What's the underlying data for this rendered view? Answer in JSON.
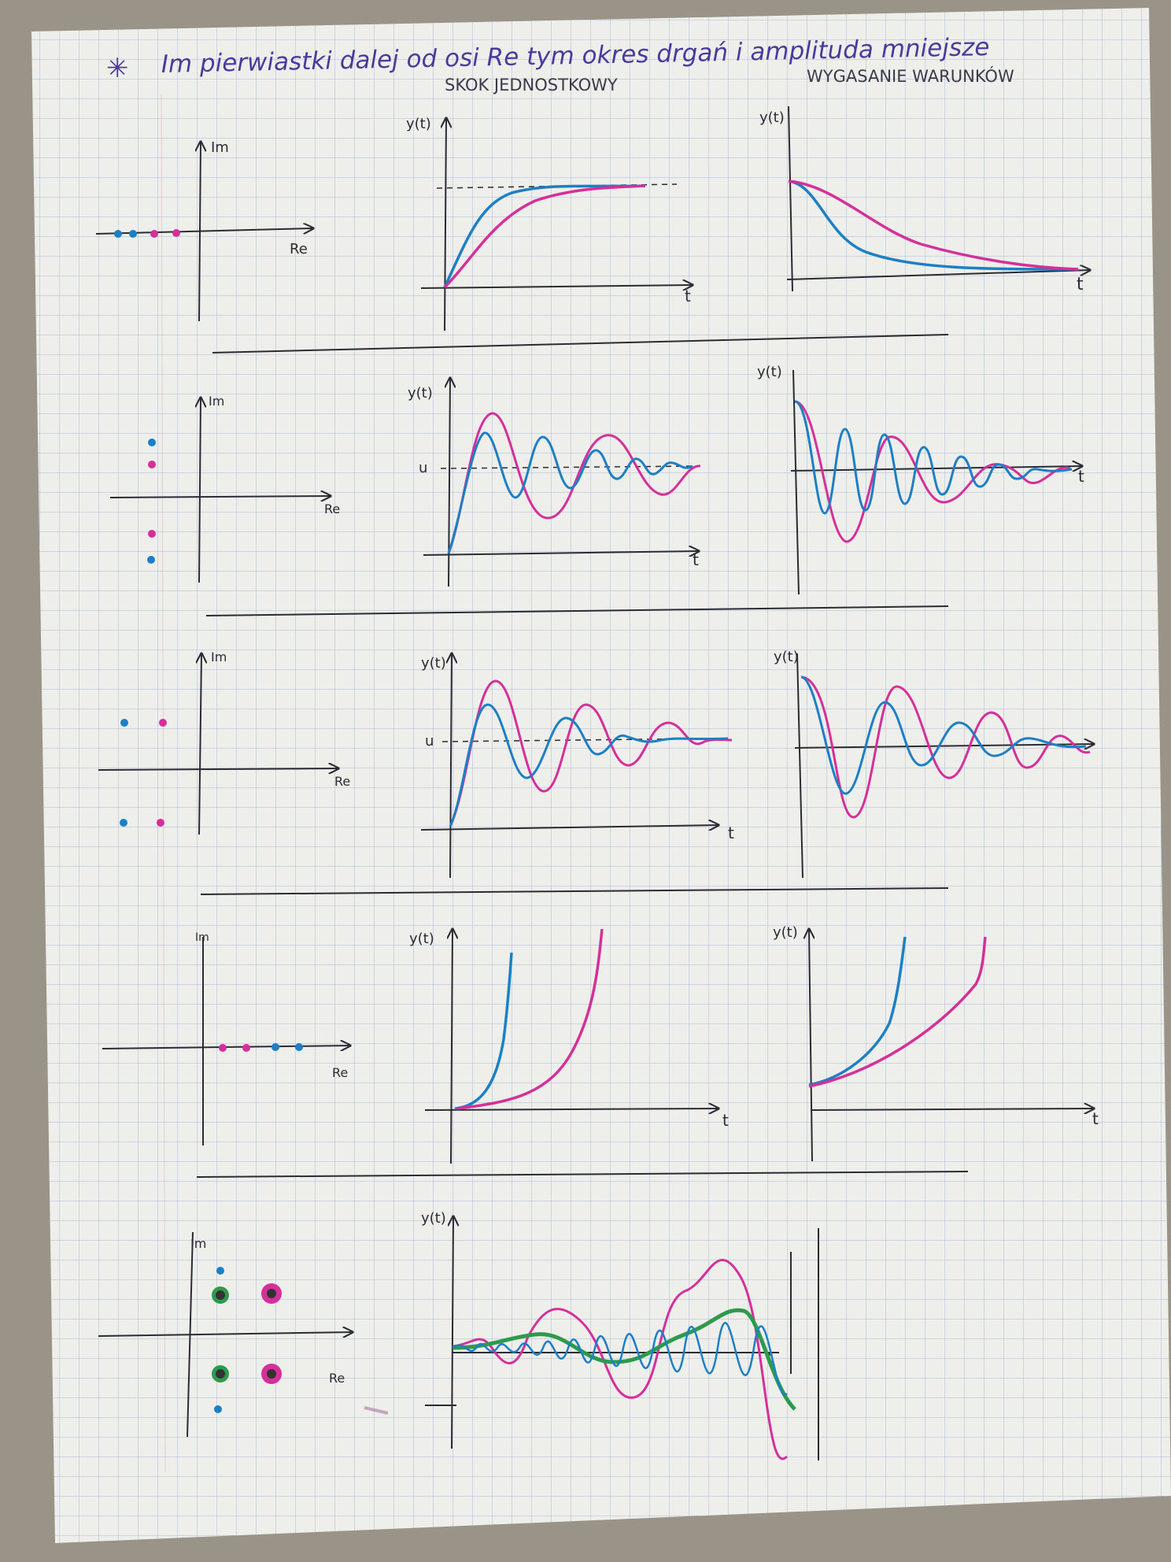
{
  "header": {
    "star": "✳",
    "note": "Im pierwiastki dalej od osi Re tym okres drgań i amplituda mniejsze",
    "col_step": "SKOK JEDNOSTKOWY",
    "col_decay": "WYGASANIE WARUNKÓW"
  },
  "labels": {
    "im": "Im",
    "re": "Re",
    "yt": "y(t)",
    "t": "t",
    "u": "u"
  },
  "colors": {
    "paper": "#eeeeeb",
    "grid": "#a9b9d8",
    "ink": "#2b2b33",
    "blue": "#1d7fc4",
    "magenta": "#d52f9a",
    "green": "#2e9a4e"
  },
  "rows": [
    {
      "id": "real-poles",
      "pole_pattern": "negative real axis",
      "step": "overdamped rise",
      "decay": "monotonic decay"
    },
    {
      "id": "imag-poles",
      "pole_pattern": "conjugate pairs near imaginary axis",
      "step": "sustained-like oscillation",
      "decay": "oscillation around zero"
    },
    {
      "id": "complex-poles",
      "pole_pattern": "complex conjugate pairs",
      "step": "damped oscillation",
      "decay": "damped oscillation"
    },
    {
      "id": "positive-real",
      "pole_pattern": "positive real axis",
      "step": "unbounded growth",
      "decay": "unbounded growth"
    },
    {
      "id": "unstable-complex",
      "pole_pattern": "right-half complex pairs",
      "step": "growing oscillation",
      "decay": ""
    }
  ]
}
